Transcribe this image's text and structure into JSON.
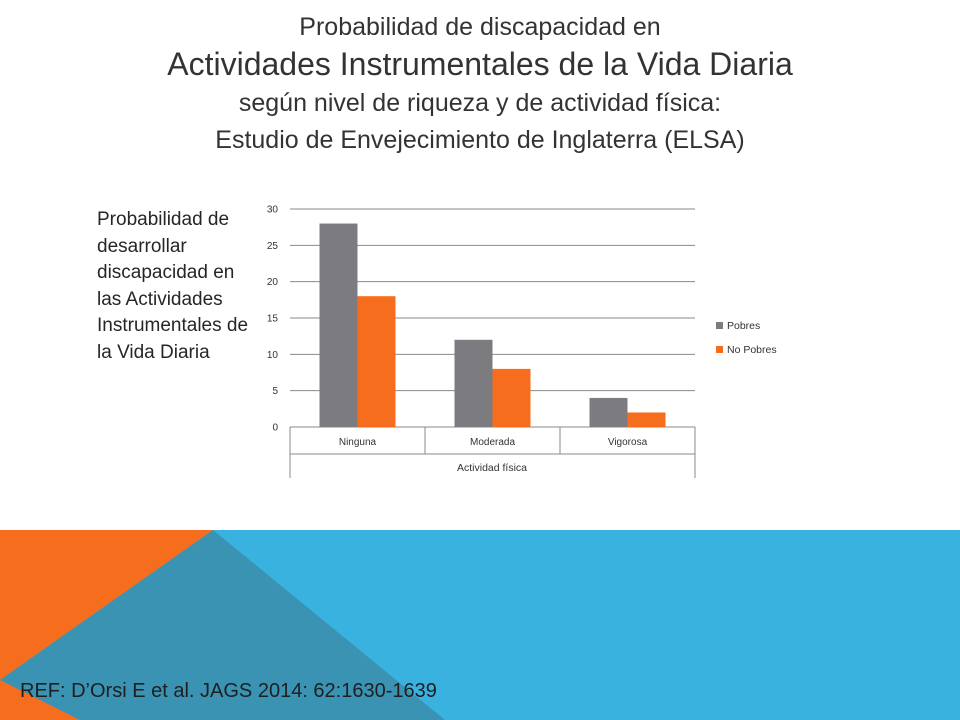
{
  "slide": {
    "title_lines": [
      "Probabilidad de discapacidad  en",
      "Actividades Instrumentales de la Vida Diaria",
      "según nivel de riqueza y de actividad física:",
      "Estudio de Envejecimiento de Inglaterra (ELSA)"
    ],
    "side_label": "Probabilidad de desarrollar discapacidad en las Actividades Instrumentales de la Vida Diaria",
    "reference": "REF: D’Orsi E et al. JAGS 2014: 62:1630-1639",
    "colors": {
      "footer_blue": "#3ab2e0",
      "footer_orange": "#f76d1e",
      "footer_teal": "#3a93b3"
    }
  },
  "chart_data": {
    "type": "bar",
    "categories": [
      "Ninguna",
      "Moderada",
      "Vigorosa"
    ],
    "series": [
      {
        "name": "Pobres",
        "values": [
          28,
          12,
          4
        ],
        "color": "#7c7c80"
      },
      {
        "name": "No Pobres",
        "values": [
          18,
          8,
          2
        ],
        "color": "#f76d1e"
      }
    ],
    "yticks": [
      "0",
      "5",
      "10",
      "15",
      "20",
      "25",
      "30"
    ],
    "ylim": [
      0,
      30
    ],
    "xlabel": "Actividad física",
    "grid": true,
    "legend_position": "right"
  }
}
